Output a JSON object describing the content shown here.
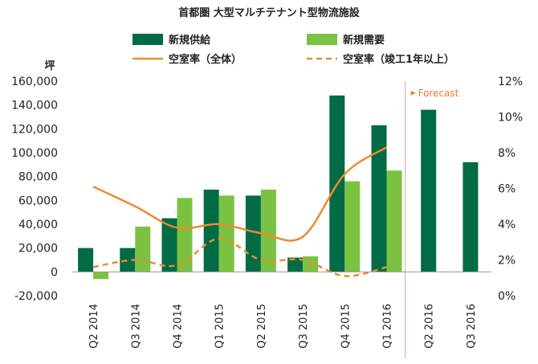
{
  "chart_data": {
    "type": "bar",
    "title": "首都圏 大型マルチテナント型物流施設",
    "ylabel": "坪",
    "ylim": [
      -20000,
      160000
    ],
    "y_ticks": [
      -20000,
      0,
      20000,
      40000,
      60000,
      80000,
      100000,
      120000,
      140000,
      160000
    ],
    "y_tick_labels": [
      "-20,000",
      "0",
      "20,000",
      "40,000",
      "60,000",
      "80,000",
      "100,000",
      "120,000",
      "140,000",
      "160,000"
    ],
    "y2lim": [
      0,
      12
    ],
    "y2_ticks": [
      0,
      2,
      4,
      6,
      8,
      10,
      12
    ],
    "y2_tick_labels": [
      "0%",
      "2%",
      "4%",
      "6%",
      "8%",
      "10%",
      "12%"
    ],
    "categories": [
      "Q2 2014",
      "Q3 2014",
      "Q4 2014",
      "Q1 2015",
      "Q2 2015",
      "Q3 2015",
      "Q4 2015",
      "Q1 2016",
      "Q2 2016",
      "Q3 2016"
    ],
    "series": [
      {
        "name": "新規供給",
        "kind": "bar",
        "axis": "left",
        "color": "#006b45",
        "values": [
          20000,
          20000,
          45000,
          69000,
          64000,
          12000,
          148000,
          123000,
          136000,
          92000
        ]
      },
      {
        "name": "新規需要",
        "kind": "bar",
        "axis": "left",
        "color": "#7cc242",
        "values": [
          -6000,
          38000,
          62000,
          64000,
          69000,
          13000,
          76000,
          85000,
          null,
          null
        ]
      },
      {
        "name": "空室率（全体）",
        "kind": "line",
        "axis": "right",
        "color": "#ee8a2e",
        "style": "solid",
        "values": [
          6.1,
          5.0,
          3.8,
          4.0,
          3.5,
          3.3,
          6.8,
          8.3,
          null,
          null
        ]
      },
      {
        "name": "空室率（竣工1年以上）",
        "kind": "line",
        "axis": "right",
        "color": "#ee8a2e",
        "style": "dashed",
        "values": [
          1.6,
          2.0,
          1.7,
          3.2,
          2.0,
          2.0,
          1.1,
          1.6,
          null,
          null
        ]
      }
    ],
    "forecast_label": "Forecast",
    "forecast_start_index": 8,
    "grid": false,
    "legend_position": "top"
  }
}
